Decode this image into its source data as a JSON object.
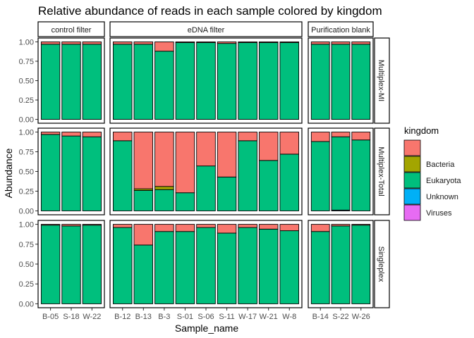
{
  "chart_data": {
    "type": "bar",
    "stacked": true,
    "title": "Relative abundance of reads in each sample colored by kingdom",
    "xlabel": "Sample_name",
    "ylabel": "Abundance",
    "ylim": [
      0,
      1
    ],
    "yticks": [
      "0.00",
      "0.25",
      "0.50",
      "0.75",
      "1.00"
    ],
    "grid": false,
    "legend": {
      "title": "kingdom",
      "position": "right",
      "entries": [
        {
          "label": "",
          "color": "#F8766D"
        },
        {
          "label": "Bacteria",
          "color": "#A3A500"
        },
        {
          "label": "Eukaryota",
          "color": "#00BF7D"
        },
        {
          "label": "Unknown",
          "color": "#00B0F6"
        },
        {
          "label": "Viruses",
          "color": "#E76BF3"
        }
      ]
    },
    "column_facets": [
      {
        "label": "control filter",
        "samples": [
          "B-05",
          "S-18",
          "W-22"
        ]
      },
      {
        "label": "eDNA filter",
        "samples": [
          "B-12",
          "B-13",
          "B-3",
          "S-01",
          "S-06",
          "S-11",
          "W-17",
          "W-21",
          "W-8"
        ]
      },
      {
        "label": "Purification blank",
        "samples": [
          "B-14",
          "S-22",
          "W-26"
        ]
      }
    ],
    "row_facets": [
      {
        "label": "Multiplex-MI",
        "bars": {
          "B-05": {
            "Eukaryota": 0.97,
            "NA": 0.03
          },
          "S-18": {
            "Eukaryota": 0.97,
            "NA": 0.03
          },
          "W-22": {
            "Eukaryota": 0.97,
            "NA": 0.03
          },
          "B-12": {
            "Eukaryota": 0.97,
            "NA": 0.03
          },
          "B-13": {
            "Eukaryota": 0.97,
            "NA": 0.03
          },
          "B-3": {
            "Eukaryota": 0.88,
            "NA": 0.12
          },
          "S-01": {
            "Eukaryota": 0.99,
            "NA": 0.01
          },
          "S-06": {
            "Eukaryota": 0.99,
            "NA": 0.01
          },
          "S-11": {
            "Eukaryota": 0.98,
            "NA": 0.02
          },
          "W-17": {
            "Eukaryota": 0.99,
            "NA": 0.01
          },
          "W-21": {
            "Eukaryota": 0.99,
            "NA": 0.01
          },
          "W-8": {
            "Eukaryota": 0.99,
            "NA": 0.01
          },
          "B-14": {
            "Eukaryota": 0.97,
            "NA": 0.03
          },
          "S-22": {
            "Eukaryota": 0.97,
            "NA": 0.03
          },
          "W-26": {
            "Eukaryota": 0.97,
            "NA": 0.03
          }
        }
      },
      {
        "label": "Multiplex-Total",
        "bars": {
          "B-05": {
            "Eukaryota": 0.97,
            "NA": 0.03
          },
          "S-18": {
            "Eukaryota": 0.95,
            "NA": 0.05
          },
          "W-22": {
            "Eukaryota": 0.94,
            "NA": 0.06
          },
          "B-12": {
            "Eukaryota": 0.89,
            "NA": 0.11
          },
          "B-13": {
            "Bacteria": 0.02,
            "Eukaryota": 0.26,
            "NA": 0.72
          },
          "B-3": {
            "Bacteria": 0.04,
            "Eukaryota": 0.27,
            "NA": 0.69
          },
          "S-01": {
            "Eukaryota": 0.23,
            "NA": 0.77
          },
          "S-06": {
            "Eukaryota": 0.57,
            "NA": 0.43
          },
          "S-11": {
            "Eukaryota": 0.43,
            "NA": 0.57
          },
          "W-17": {
            "Eukaryota": 0.89,
            "NA": 0.11
          },
          "W-21": {
            "Eukaryota": 0.64,
            "NA": 0.36
          },
          "W-8": {
            "Eukaryota": 0.72,
            "NA": 0.28
          },
          "B-14": {
            "Eukaryota": 0.88,
            "NA": 0.12
          },
          "S-22": {
            "Unknown": 0.01,
            "Eukaryota": 0.93,
            "NA": 0.06
          },
          "W-26": {
            "Eukaryota": 0.9,
            "NA": 0.1
          }
        }
      },
      {
        "label": "Singleplex",
        "bars": {
          "B-05": {
            "Eukaryota": 0.99,
            "NA": 0.01
          },
          "S-18": {
            "Eukaryota": 0.98,
            "NA": 0.02
          },
          "W-22": {
            "Eukaryota": 0.99,
            "NA": 0.01
          },
          "B-12": {
            "Eukaryota": 0.96,
            "NA": 0.04
          },
          "B-13": {
            "Eukaryota": 0.74,
            "NA": 0.26
          },
          "B-3": {
            "Eukaryota": 0.91,
            "NA": 0.09
          },
          "S-01": {
            "Eukaryota": 0.91,
            "NA": 0.09
          },
          "S-06": {
            "Eukaryota": 0.96,
            "NA": 0.04
          },
          "S-11": {
            "Eukaryota": 0.89,
            "NA": 0.11
          },
          "W-17": {
            "Eukaryota": 0.96,
            "NA": 0.04
          },
          "W-21": {
            "Eukaryota": 0.94,
            "NA": 0.06
          },
          "W-8": {
            "Eukaryota": 0.92,
            "NA": 0.08
          },
          "B-14": {
            "Eukaryota": 0.91,
            "NA": 0.09
          },
          "S-22": {
            "Eukaryota": 0.98,
            "NA": 0.02
          },
          "W-26": {
            "Eukaryota": 0.99,
            "NA": 0.01
          }
        }
      }
    ]
  }
}
